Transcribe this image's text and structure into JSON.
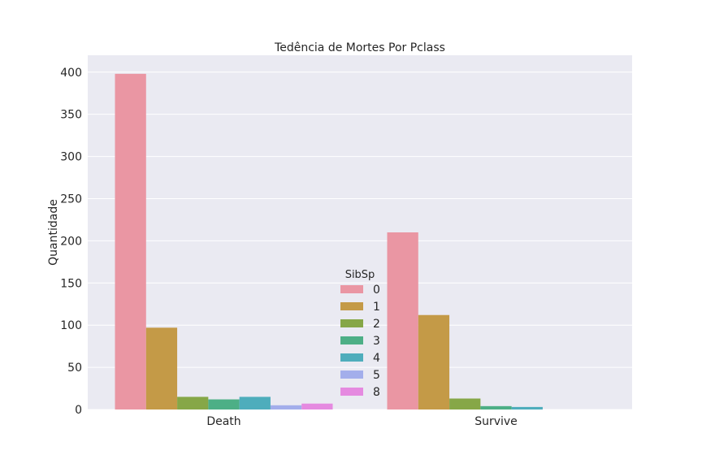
{
  "chart_data": {
    "type": "bar",
    "title": "Tedência de Mortes Por Pclass",
    "xlabel": "",
    "ylabel": "Quantidade",
    "categories": [
      "Death",
      "Survive"
    ],
    "ylim": [
      0,
      420
    ],
    "yticks": [
      0,
      50,
      100,
      150,
      200,
      250,
      300,
      350,
      400
    ],
    "grid": true,
    "legend": {
      "title": "SibSp",
      "placement": "center"
    },
    "series": [
      {
        "name": "0",
        "color": "#ea96a3",
        "values": [
          398,
          210
        ]
      },
      {
        "name": "1",
        "color": "#c49a47",
        "values": [
          97,
          112
        ]
      },
      {
        "name": "2",
        "color": "#86a747",
        "values": [
          15,
          13
        ]
      },
      {
        "name": "3",
        "color": "#4daf86",
        "values": [
          12,
          4
        ]
      },
      {
        "name": "4",
        "color": "#4eadbc",
        "values": [
          15,
          3
        ]
      },
      {
        "name": "5",
        "color": "#a3aeeb",
        "values": [
          5,
          0
        ]
      },
      {
        "name": "8",
        "color": "#e58ae0",
        "values": [
          7,
          0
        ]
      }
    ]
  }
}
